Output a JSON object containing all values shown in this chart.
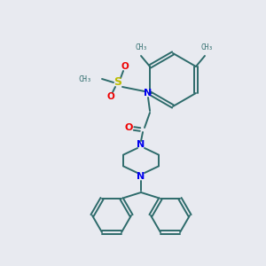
{
  "bg_color": "#e8eaf0",
  "bond_color": "#2d6b6b",
  "N_color": "#0000ee",
  "O_color": "#ee0000",
  "S_color": "#bbbb00",
  "figsize": [
    3.0,
    3.0
  ],
  "dpi": 100,
  "xlim": [
    0,
    300
  ],
  "ylim": [
    0,
    300
  ]
}
